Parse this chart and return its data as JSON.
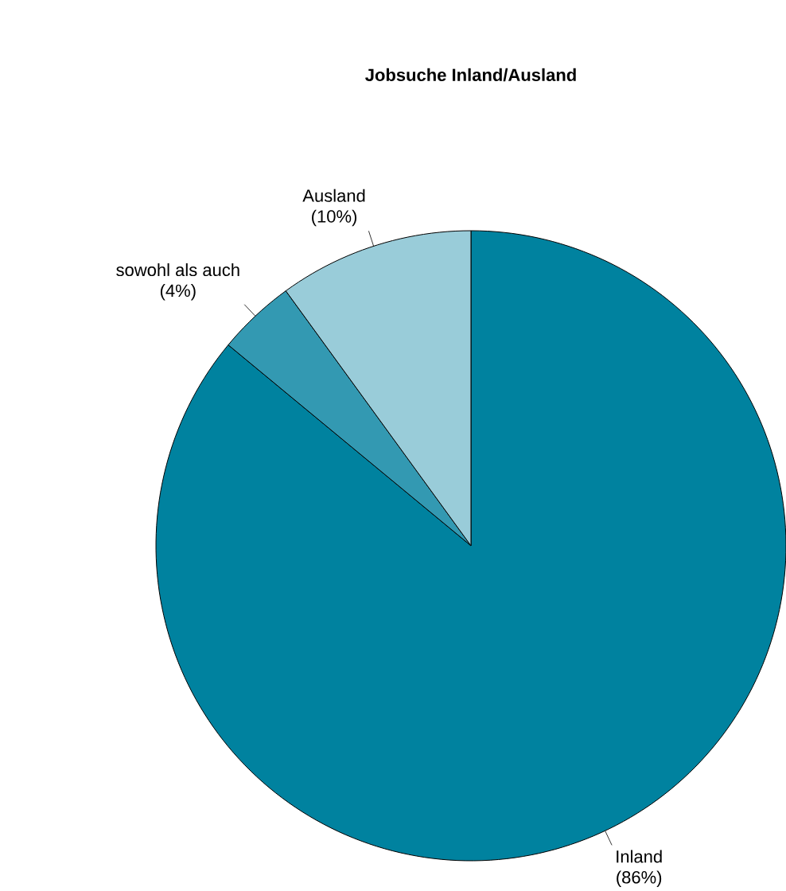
{
  "chart_data": {
    "type": "pie",
    "title": "Jobsuche Inland/Ausland",
    "categories": [
      "Inland",
      "sowohl als auch",
      "Ausland"
    ],
    "values": [
      86,
      4,
      10
    ],
    "colors": [
      "#00829f",
      "#3399b2",
      "#99ccd9"
    ],
    "value_labels": [
      "(86%)",
      "(4%)",
      "(10%)"
    ]
  }
}
